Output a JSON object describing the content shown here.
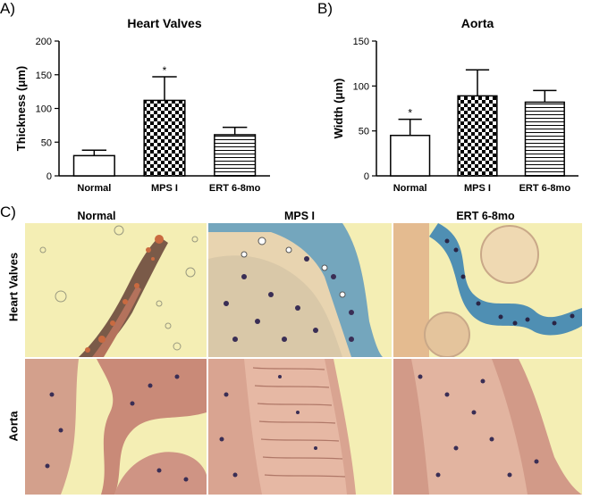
{
  "panels": {
    "a_letter": "A)",
    "b_letter": "B)",
    "c_letter": "C)"
  },
  "chart_data": [
    {
      "type": "bar",
      "title": "Heart Valves",
      "ylabel": "Thickness (μm)",
      "xlabel": "",
      "categories": [
        "Normal",
        "MPS I",
        "ERT 6-8mo"
      ],
      "values": [
        30,
        112,
        61
      ],
      "errors": [
        8,
        35,
        11
      ],
      "annotations": [
        "",
        "*",
        ""
      ],
      "patterns": [
        "plain",
        "checker",
        "hlines"
      ],
      "ylim": [
        0,
        200
      ],
      "yticks": [
        0,
        50,
        100,
        150,
        200
      ]
    },
    {
      "type": "bar",
      "title": "Aorta",
      "ylabel": "Width (μm)",
      "xlabel": "",
      "categories": [
        "Normal",
        "MPS I",
        "ERT 6-8mo"
      ],
      "values": [
        45,
        89,
        82
      ],
      "errors": [
        18,
        29,
        13
      ],
      "annotations": [
        "*",
        "",
        ""
      ],
      "patterns": [
        "plain",
        "checker",
        "hlines"
      ],
      "ylim": [
        0,
        150
      ],
      "yticks": [
        0,
        50,
        100,
        150
      ]
    }
  ],
  "micrographs": {
    "columns": [
      "Normal",
      "MPS I",
      "ERT 6-8mo"
    ],
    "rows": [
      "Heart Valves",
      "Aorta"
    ]
  },
  "colors": {
    "background_tissue": "#f3ecaa",
    "alcian_blue": "#4f90b4",
    "eosin": "#c98a78",
    "nuclei": "#3a2e55"
  }
}
